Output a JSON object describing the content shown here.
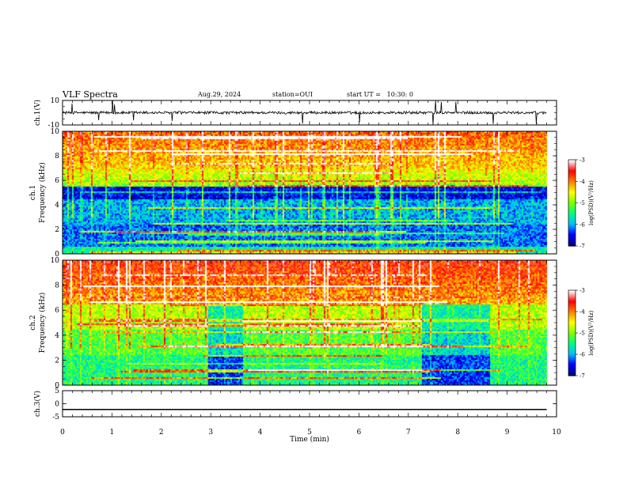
{
  "header": {
    "title": "VLF Spectra",
    "date": "Aug.29, 2024",
    "station": "station=OUI",
    "start_ut": "start UT =   10:30: 0"
  },
  "colors": {
    "spectrogram_scale": [
      "#00007f",
      "#0000ff",
      "#00bfff",
      "#00ff80",
      "#80ff00",
      "#ffff00",
      "#ff8000",
      "#ff0000",
      "#ffffff"
    ],
    "trace": "#000000"
  },
  "chart_data": [
    {
      "type": "line",
      "name": "waveform-ch1",
      "ylabel": "ch.1(V)",
      "ylim": [
        -10,
        10
      ],
      "yticks": [
        "10",
        "-10"
      ],
      "x_range_min": [
        0,
        10
      ],
      "baseline": 0,
      "data_end_min": 9.8
    },
    {
      "type": "heatmap",
      "name": "spectrogram-ch1",
      "ylabel": "ch.1 Frequency (kHz)",
      "ylim": [
        0,
        10
      ],
      "yticks": [
        "0",
        "2",
        "4",
        "6",
        "8",
        "10"
      ],
      "x_range_min": [
        0,
        10
      ],
      "data_end_min": 9.8,
      "colorbar": {
        "label": "log(PSD)(V²/Hz)",
        "range": [
          -7,
          -3
        ],
        "ticks": [
          "-3",
          "-4",
          "-5",
          "-6",
          "-7"
        ]
      }
    },
    {
      "type": "heatmap",
      "name": "spectrogram-ch2",
      "ylabel": "ch.2 Frequency (kHz)",
      "ylim": [
        0,
        10
      ],
      "yticks": [
        "0",
        "2",
        "4",
        "6",
        "8",
        "10"
      ],
      "x_range_min": [
        0,
        10
      ],
      "data_end_min": 9.8,
      "colorbar": {
        "label": "log(PSD)(V²/Hz)",
        "range": [
          -7,
          -3
        ],
        "ticks": [
          "-3",
          "-4",
          "-5",
          "-6",
          "-7"
        ]
      }
    },
    {
      "type": "line",
      "name": "waveform-ch3",
      "ylabel": "ch.3(V)",
      "ylim": [
        -5,
        5
      ],
      "yticks": [
        "5",
        "0",
        "-5"
      ],
      "x_range_min": [
        0,
        10
      ],
      "x": [
        0,
        9.8
      ],
      "y": [
        -2.2,
        -2.2
      ],
      "xlabel": "Time (min)",
      "xticks": [
        "0",
        "1",
        "2",
        "3",
        "4",
        "5",
        "6",
        "7",
        "8",
        "9",
        "10"
      ]
    }
  ]
}
